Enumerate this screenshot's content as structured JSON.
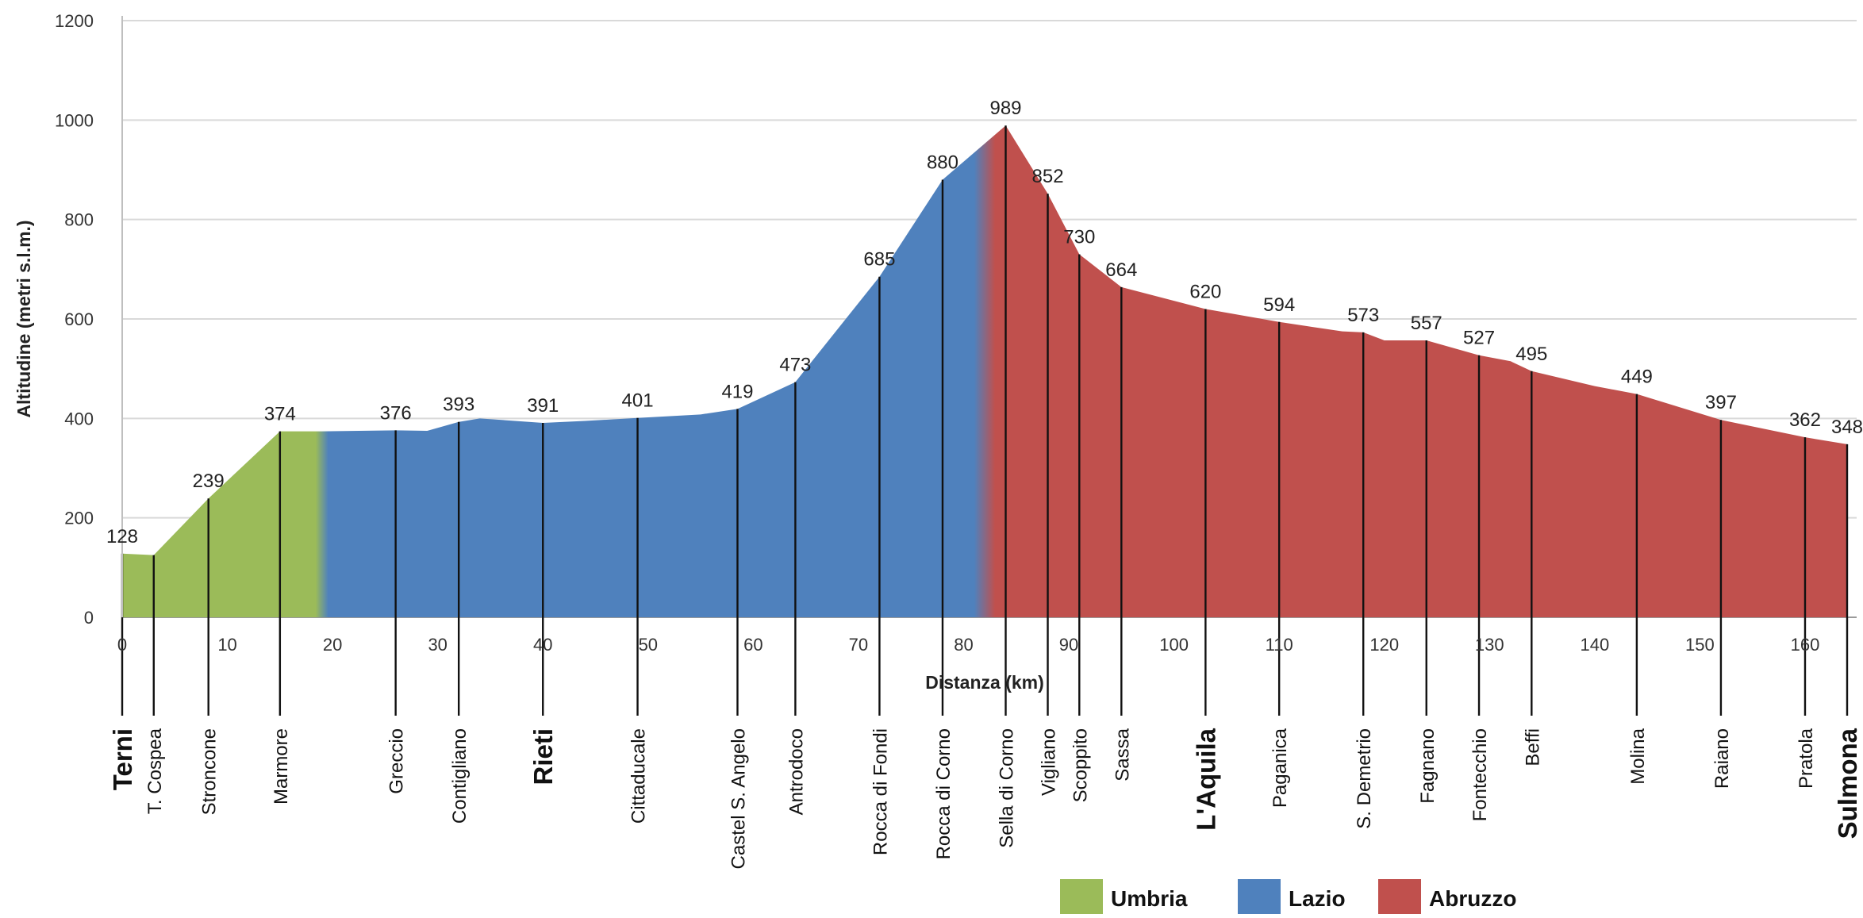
{
  "chart_data": {
    "type": "area",
    "title": "",
    "xlabel": "Distanza (km)",
    "ylabel": "Altitudine (metri s.l.m.)",
    "xlim": [
      0,
      164
    ],
    "ylim": [
      0,
      1200
    ],
    "y_ticks": [
      "0",
      "200",
      "400",
      "600",
      "800",
      "1000",
      "1200"
    ],
    "x_ticks": [
      "0",
      "10",
      "20",
      "30",
      "40",
      "50",
      "60",
      "70",
      "80",
      "90",
      "100",
      "110",
      "120",
      "130",
      "140",
      "150",
      "160"
    ],
    "grid": "horizontal",
    "legend_position": "bottom-right",
    "series": [
      {
        "name": "Umbria",
        "color": "#9bbb59"
      },
      {
        "name": "Lazio",
        "color": "#4f81bd"
      },
      {
        "name": "Abruzzo",
        "color": "#c0504d"
      }
    ],
    "region_boundaries_km": [
      19,
      82
    ],
    "profile": [
      {
        "x": 0,
        "y": 128
      },
      {
        "x": 3,
        "y": 125
      },
      {
        "x": 8.2,
        "y": 239
      },
      {
        "x": 15,
        "y": 374
      },
      {
        "x": 19,
        "y": 374
      },
      {
        "x": 26,
        "y": 376
      },
      {
        "x": 29,
        "y": 375
      },
      {
        "x": 32,
        "y": 393
      },
      {
        "x": 34,
        "y": 400
      },
      {
        "x": 40,
        "y": 391
      },
      {
        "x": 44,
        "y": 395
      },
      {
        "x": 49,
        "y": 401
      },
      {
        "x": 55,
        "y": 408
      },
      {
        "x": 58.5,
        "y": 419
      },
      {
        "x": 64,
        "y": 473
      },
      {
        "x": 72,
        "y": 685
      },
      {
        "x": 78,
        "y": 880
      },
      {
        "x": 84,
        "y": 989
      },
      {
        "x": 88,
        "y": 852
      },
      {
        "x": 91,
        "y": 730
      },
      {
        "x": 95,
        "y": 664
      },
      {
        "x": 103,
        "y": 620
      },
      {
        "x": 110,
        "y": 594
      },
      {
        "x": 116,
        "y": 575
      },
      {
        "x": 118,
        "y": 573
      },
      {
        "x": 120,
        "y": 557
      },
      {
        "x": 124,
        "y": 557
      },
      {
        "x": 129,
        "y": 527
      },
      {
        "x": 132,
        "y": 515
      },
      {
        "x": 134,
        "y": 495
      },
      {
        "x": 140,
        "y": 465
      },
      {
        "x": 144,
        "y": 449
      },
      {
        "x": 152,
        "y": 397
      },
      {
        "x": 160,
        "y": 362
      },
      {
        "x": 164,
        "y": 348
      }
    ],
    "value_labels": [
      {
        "x": 0,
        "y": 128,
        "text": "128"
      },
      {
        "x": 8.2,
        "y": 239,
        "text": "239"
      },
      {
        "x": 15,
        "y": 374,
        "text": "374"
      },
      {
        "x": 26,
        "y": 376,
        "text": "376"
      },
      {
        "x": 32,
        "y": 393,
        "text": "393"
      },
      {
        "x": 40,
        "y": 391,
        "text": "391"
      },
      {
        "x": 49,
        "y": 401,
        "text": "401"
      },
      {
        "x": 58.5,
        "y": 419,
        "text": "419"
      },
      {
        "x": 64,
        "y": 473,
        "text": "473"
      },
      {
        "x": 72,
        "y": 685,
        "text": "685"
      },
      {
        "x": 78,
        "y": 880,
        "text": "880"
      },
      {
        "x": 84,
        "y": 989,
        "text": "989"
      },
      {
        "x": 88,
        "y": 852,
        "text": "852"
      },
      {
        "x": 91,
        "y": 730,
        "text": "730"
      },
      {
        "x": 95,
        "y": 664,
        "text": "664"
      },
      {
        "x": 103,
        "y": 620,
        "text": "620"
      },
      {
        "x": 110,
        "y": 594,
        "text": "594"
      },
      {
        "x": 118,
        "y": 573,
        "text": "573"
      },
      {
        "x": 124,
        "y": 557,
        "text": "557"
      },
      {
        "x": 129,
        "y": 527,
        "text": "527"
      },
      {
        "x": 134,
        "y": 495,
        "text": "495"
      },
      {
        "x": 144,
        "y": 449,
        "text": "449"
      },
      {
        "x": 152,
        "y": 397,
        "text": "397"
      },
      {
        "x": 160,
        "y": 362,
        "text": "362"
      },
      {
        "x": 164,
        "y": 348,
        "text": "348"
      }
    ],
    "places": [
      {
        "name": "Terni",
        "x": 0,
        "y": 128,
        "major": true
      },
      {
        "name": "T. Cospea",
        "x": 3,
        "y": 125,
        "major": false
      },
      {
        "name": "Stroncone",
        "x": 8.2,
        "y": 239,
        "major": false
      },
      {
        "name": "Marmore",
        "x": 15,
        "y": 374,
        "major": false
      },
      {
        "name": "Greccio",
        "x": 26,
        "y": 376,
        "major": false
      },
      {
        "name": "Contigliano",
        "x": 32,
        "y": 393,
        "major": false
      },
      {
        "name": "Rieti",
        "x": 40,
        "y": 391,
        "major": true
      },
      {
        "name": "Cittaducale",
        "x": 49,
        "y": 401,
        "major": false
      },
      {
        "name": "Castel S. Angelo",
        "x": 58.5,
        "y": 419,
        "major": false
      },
      {
        "name": "Antrodoco",
        "x": 64,
        "y": 473,
        "major": false
      },
      {
        "name": "Rocca di Fondi",
        "x": 72,
        "y": 685,
        "major": false
      },
      {
        "name": "Rocca di Corno",
        "x": 78,
        "y": 880,
        "major": false
      },
      {
        "name": "Sella di Corno",
        "x": 84,
        "y": 989,
        "major": false
      },
      {
        "name": "Vigliano",
        "x": 88,
        "y": 852,
        "major": false
      },
      {
        "name": "Scoppito",
        "x": 91,
        "y": 730,
        "major": false
      },
      {
        "name": "Sassa",
        "x": 95,
        "y": 664,
        "major": false
      },
      {
        "name": "L'Aquila",
        "x": 103,
        "y": 620,
        "major": true
      },
      {
        "name": "Paganica",
        "x": 110,
        "y": 594,
        "major": false
      },
      {
        "name": "S. Demetrio",
        "x": 118,
        "y": 573,
        "major": false
      },
      {
        "name": "Fagnano",
        "x": 124,
        "y": 557,
        "major": false
      },
      {
        "name": "Fontecchio",
        "x": 129,
        "y": 527,
        "major": false
      },
      {
        "name": "Beffi",
        "x": 134,
        "y": 495,
        "major": false
      },
      {
        "name": "Molina",
        "x": 144,
        "y": 449,
        "major": false
      },
      {
        "name": "Raiano",
        "x": 152,
        "y": 397,
        "major": false
      },
      {
        "name": "Pratola",
        "x": 160,
        "y": 362,
        "major": false
      },
      {
        "name": "Sulmona",
        "x": 164,
        "y": 348,
        "major": true
      }
    ]
  }
}
